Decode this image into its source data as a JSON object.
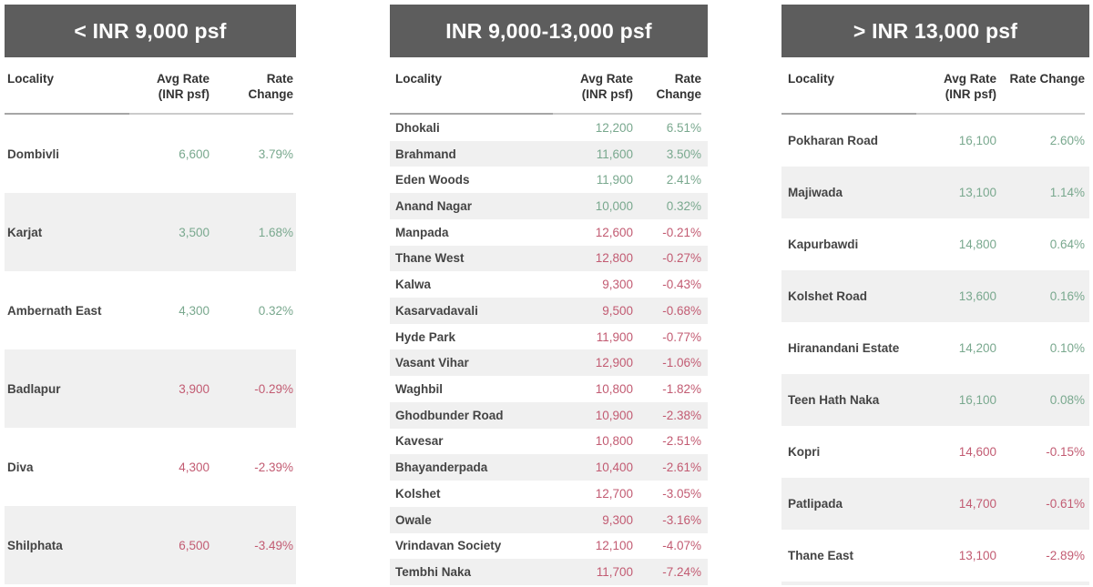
{
  "palette": {
    "positive": "#79a88e",
    "negative": "#c25b72",
    "title_bar_bg": "#5d5d5d",
    "title_bar_text": "#ffffff",
    "row_stripe": "#f0f0f0",
    "header_text": "#333333",
    "locality_text": "#444444"
  },
  "chart_data": [
    {
      "type": "table",
      "title": "< INR 9,000 psf",
      "columns": [
        "Locality",
        "Avg Rate\n(INR psf)",
        "Rate\nChange"
      ],
      "rows": [
        {
          "locality": "Dombivli",
          "avg_rate": "6,600",
          "rate_change": "3.79%",
          "trend": "up"
        },
        {
          "locality": "Karjat",
          "avg_rate": "3,500",
          "rate_change": "1.68%",
          "trend": "up"
        },
        {
          "locality": "Ambernath East",
          "avg_rate": "4,300",
          "rate_change": "0.32%",
          "trend": "up"
        },
        {
          "locality": "Badlapur",
          "avg_rate": "3,900",
          "rate_change": "-0.29%",
          "trend": "down"
        },
        {
          "locality": "Diva",
          "avg_rate": "4,300",
          "rate_change": "-2.39%",
          "trend": "down"
        },
        {
          "locality": "Shilphata",
          "avg_rate": "6,500",
          "rate_change": "-3.49%",
          "trend": "down"
        }
      ]
    },
    {
      "type": "table",
      "title": "INR 9,000-13,000 psf",
      "columns": [
        "Locality",
        "Avg Rate\n(INR psf)",
        "Rate\nChange"
      ],
      "rows": [
        {
          "locality": "Dhokali",
          "avg_rate": "12,200",
          "rate_change": "6.51%",
          "trend": "up"
        },
        {
          "locality": "Brahmand",
          "avg_rate": "11,600",
          "rate_change": "3.50%",
          "trend": "up"
        },
        {
          "locality": "Eden Woods",
          "avg_rate": "11,900",
          "rate_change": "2.41%",
          "trend": "up"
        },
        {
          "locality": "Anand Nagar",
          "avg_rate": "10,000",
          "rate_change": "0.32%",
          "trend": "up"
        },
        {
          "locality": "Manpada",
          "avg_rate": "12,600",
          "rate_change": "-0.21%",
          "trend": "down"
        },
        {
          "locality": "Thane West",
          "avg_rate": "12,800",
          "rate_change": "-0.27%",
          "trend": "down"
        },
        {
          "locality": "Kalwa",
          "avg_rate": "9,300",
          "rate_change": "-0.43%",
          "trend": "down"
        },
        {
          "locality": "Kasarvadavali",
          "avg_rate": "9,500",
          "rate_change": "-0.68%",
          "trend": "down"
        },
        {
          "locality": "Hyde Park",
          "avg_rate": "11,900",
          "rate_change": "-0.77%",
          "trend": "down"
        },
        {
          "locality": "Vasant Vihar",
          "avg_rate": "12,900",
          "rate_change": "-1.06%",
          "trend": "down"
        },
        {
          "locality": "Waghbil",
          "avg_rate": "10,800",
          "rate_change": "-1.82%",
          "trend": "down"
        },
        {
          "locality": "Ghodbunder Road",
          "avg_rate": "10,900",
          "rate_change": "-2.38%",
          "trend": "down"
        },
        {
          "locality": "Kavesar",
          "avg_rate": "10,800",
          "rate_change": "-2.51%",
          "trend": "down"
        },
        {
          "locality": "Bhayanderpada",
          "avg_rate": "10,400",
          "rate_change": "-2.61%",
          "trend": "down"
        },
        {
          "locality": "Kolshet",
          "avg_rate": "12,700",
          "rate_change": "-3.05%",
          "trend": "down"
        },
        {
          "locality": "Owale",
          "avg_rate": "9,300",
          "rate_change": "-3.16%",
          "trend": "down"
        },
        {
          "locality": "Vrindavan Society",
          "avg_rate": "12,100",
          "rate_change": "-4.07%",
          "trend": "down"
        },
        {
          "locality": "Tembhi Naka",
          "avg_rate": "11,700",
          "rate_change": "-7.24%",
          "trend": "down"
        }
      ]
    },
    {
      "type": "table",
      "title": "> INR 13,000 psf",
      "columns": [
        "Locality",
        "Avg Rate\n(INR psf)",
        "Rate Change"
      ],
      "rows": [
        {
          "locality": "Pokharan Road",
          "avg_rate": "16,100",
          "rate_change": "2.60%",
          "trend": "up"
        },
        {
          "locality": "Majiwada",
          "avg_rate": "13,100",
          "rate_change": "1.14%",
          "trend": "up"
        },
        {
          "locality": "Kapurbawdi",
          "avg_rate": "14,800",
          "rate_change": "0.64%",
          "trend": "up"
        },
        {
          "locality": "Kolshet Road",
          "avg_rate": "13,600",
          "rate_change": "0.16%",
          "trend": "up"
        },
        {
          "locality": "Hiranandani Estate",
          "avg_rate": "14,200",
          "rate_change": "0.10%",
          "trend": "up"
        },
        {
          "locality": "Teen Hath Naka",
          "avg_rate": "16,100",
          "rate_change": "0.08%",
          "trend": "up"
        },
        {
          "locality": "Kopri",
          "avg_rate": "14,600",
          "rate_change": "-0.15%",
          "trend": "down"
        },
        {
          "locality": "Patlipada",
          "avg_rate": "14,700",
          "rate_change": "-0.61%",
          "trend": "down"
        },
        {
          "locality": "Thane East",
          "avg_rate": "13,100",
          "rate_change": "-2.89%",
          "trend": "down"
        }
      ]
    }
  ]
}
